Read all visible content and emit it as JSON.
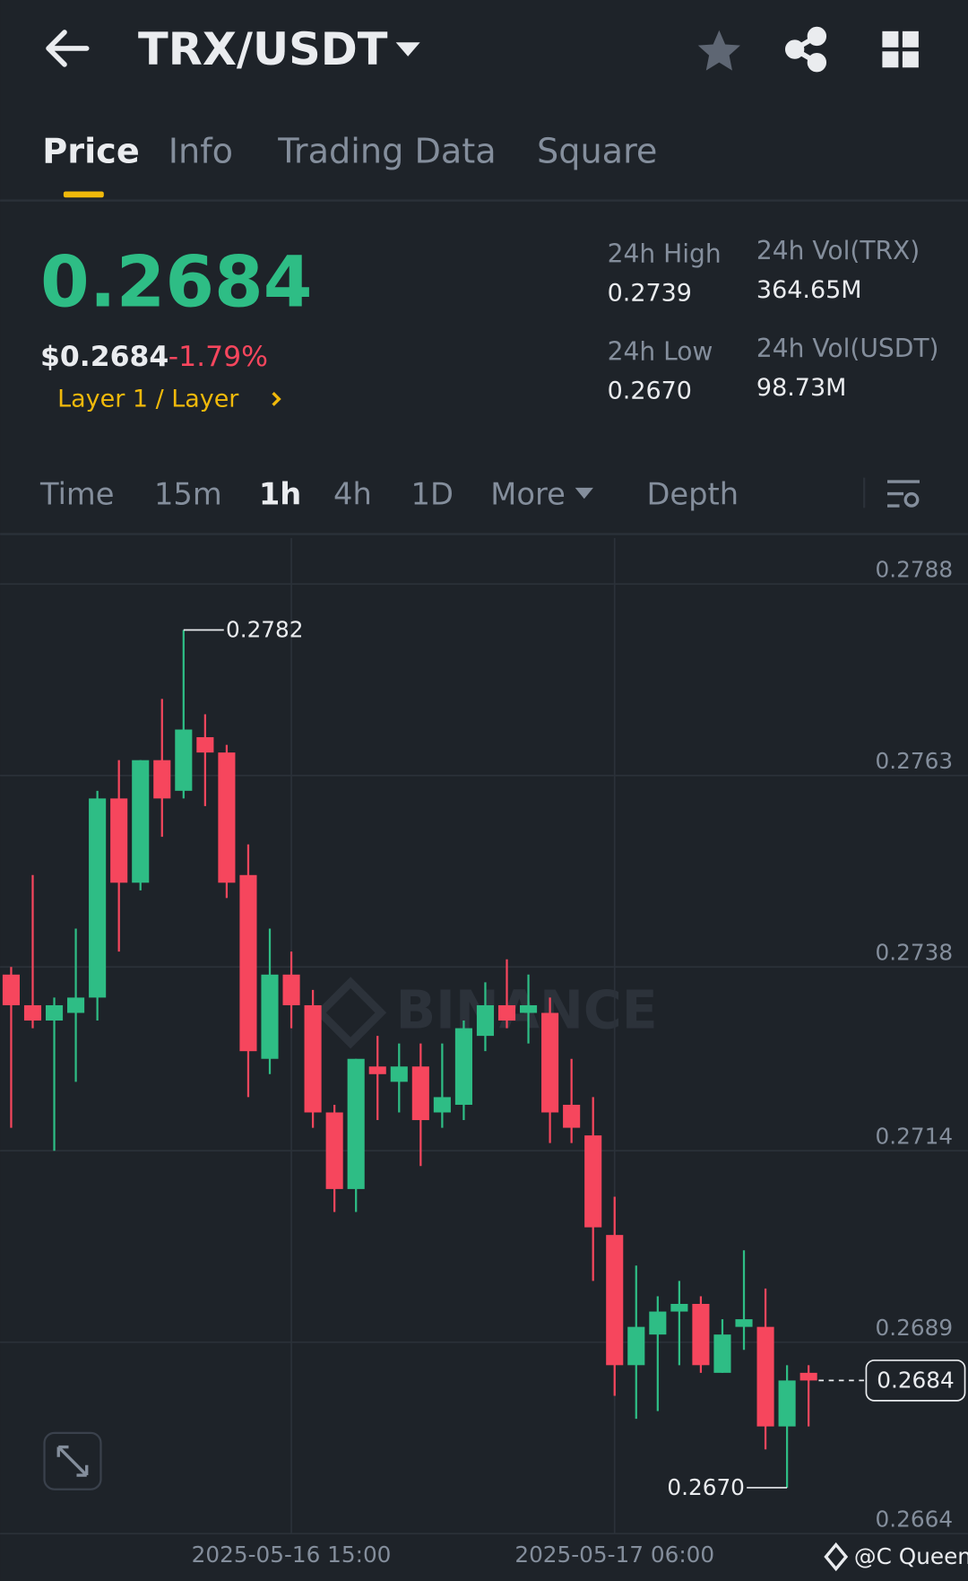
{
  "header": {
    "title": "TRX/USDT"
  },
  "tabs": [
    "Price",
    "Info",
    "Trading Data",
    "Square"
  ],
  "ticker": {
    "price": "0.2684",
    "usd_price": "$0.2684",
    "change": "-1.79%",
    "tag": "Layer 1 / Layer",
    "stats": [
      {
        "label": "24h High",
        "value": "0.2739"
      },
      {
        "label": "24h Low",
        "value": "0.2670"
      },
      {
        "label": "24h Vol(TRX)",
        "value": "364.65M"
      },
      {
        "label": "24h Vol(USDT)",
        "value": "98.73M"
      }
    ]
  },
  "intervals": [
    "Time",
    "15m",
    "1h",
    "4h",
    "1D",
    "More",
    "Depth"
  ],
  "credit": "@C Queen",
  "chart_data": {
    "type": "candlestick",
    "watermark": "BINANCE",
    "categories": [
      null,
      null,
      null,
      null,
      null,
      null,
      null,
      null,
      null,
      null,
      null,
      null,
      null,
      "2025-05-16 15:00",
      null,
      null,
      null,
      null,
      null,
      null,
      null,
      null,
      null,
      null,
      null,
      null,
      null,
      null,
      "2025-05-17 06:00",
      null,
      null,
      null,
      null,
      null,
      null,
      null,
      null,
      null
    ],
    "open": [
      0.2737,
      0.2733,
      0.2731,
      0.2732,
      0.2734,
      0.276,
      0.2749,
      0.2765,
      0.2761,
      0.2768,
      0.2766,
      0.275,
      0.2726,
      0.2737,
      0.2733,
      0.2719,
      0.2709,
      0.2725,
      0.2723,
      0.2725,
      0.2719,
      0.272,
      0.2729,
      0.2733,
      0.2732,
      0.2732,
      0.272,
      0.2716,
      0.2703,
      0.2686,
      0.269,
      0.2693,
      0.2694,
      0.2685,
      0.2691,
      0.2691,
      0.2678,
      0.2685
    ],
    "high": [
      0.2738,
      0.275,
      0.2734,
      0.2743,
      0.2761,
      0.2765,
      0.2765,
      0.2773,
      0.2782,
      0.2771,
      0.2767,
      0.2754,
      0.2743,
      0.274,
      0.2735,
      0.272,
      0.2726,
      0.2729,
      0.2728,
      0.2728,
      0.2728,
      0.2731,
      0.2736,
      0.2739,
      0.2737,
      0.2734,
      0.2726,
      0.2721,
      0.2708,
      0.2699,
      0.2695,
      0.2697,
      0.2695,
      0.2692,
      0.2701,
      0.2696,
      0.2686,
      0.2686
    ],
    "low": [
      0.2717,
      0.273,
      0.2714,
      0.2723,
      0.2731,
      0.274,
      0.2748,
      0.2755,
      0.276,
      0.2759,
      0.2747,
      0.2721,
      0.2724,
      0.273,
      0.2717,
      0.2706,
      0.2706,
      0.2718,
      0.2719,
      0.2712,
      0.2717,
      0.2718,
      0.2727,
      0.273,
      0.2728,
      0.2715,
      0.2715,
      0.2697,
      0.2682,
      0.2679,
      0.268,
      0.2686,
      0.2685,
      0.2685,
      0.2688,
      0.2675,
      0.267,
      0.2678
    ],
    "close": [
      0.2733,
      0.2731,
      0.2733,
      0.2734,
      0.276,
      0.2749,
      0.2765,
      0.276,
      0.2769,
      0.2766,
      0.2749,
      0.2727,
      0.2737,
      0.2733,
      0.2719,
      0.2709,
      0.2726,
      0.2724,
      0.2725,
      0.2718,
      0.2721,
      0.273,
      0.2733,
      0.2731,
      0.2733,
      0.2719,
      0.2717,
      0.2704,
      0.2686,
      0.2691,
      0.2693,
      0.2694,
      0.2686,
      0.269,
      0.2692,
      0.2678,
      0.2684,
      0.2684
    ],
    "up_color": "#2ebd85",
    "down_color": "#f6465d",
    "ylim": [
      0.2664,
      0.2794
    ],
    "yticks": [
      0.2788,
      0.2763,
      0.2738,
      0.2714,
      0.2689,
      0.2664
    ],
    "grid": true,
    "annotations": {
      "max": 0.2782,
      "min": {
        "value": 0.267,
        "label": "0.2670"
      },
      "last": 0.2684
    }
  }
}
